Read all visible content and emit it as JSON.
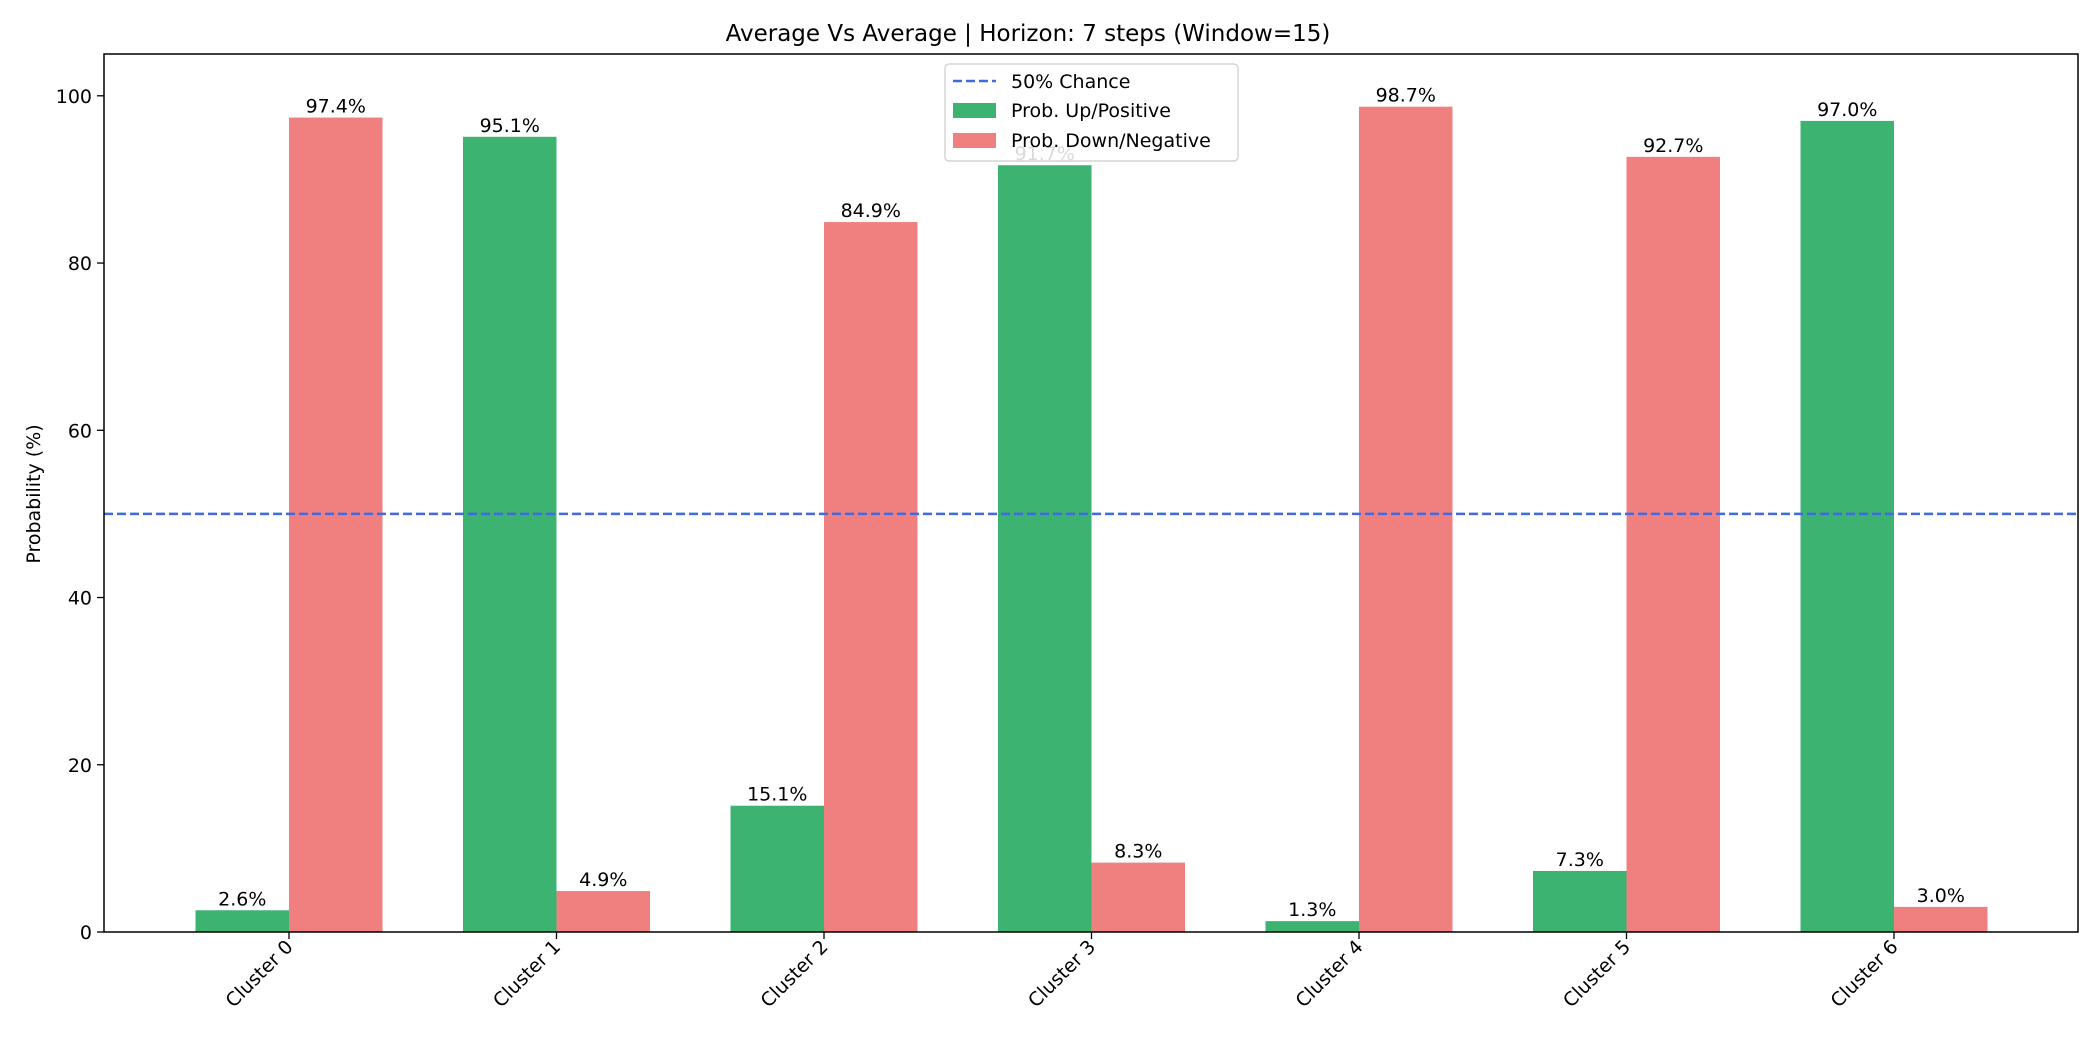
{
  "chart_data": {
    "type": "bar",
    "title": "Average Vs Average | Horizon: 7 steps (Window=15)",
    "xlabel": "",
    "ylabel": "Probability (%)",
    "categories": [
      "Cluster 0",
      "Cluster 1",
      "Cluster 2",
      "Cluster 3",
      "Cluster 4",
      "Cluster 5",
      "Cluster 6"
    ],
    "series": [
      {
        "name": "Prob. Up/Positive",
        "color": "#3cb371",
        "values": [
          2.6,
          95.1,
          15.1,
          91.7,
          1.3,
          7.3,
          97.0
        ],
        "labels": [
          "2.6%",
          "95.1%",
          "15.1%",
          "91.7%",
          "1.3%",
          "7.3%",
          "97.0%"
        ]
      },
      {
        "name": "Prob. Down/Negative",
        "color": "#f08080",
        "values": [
          97.4,
          4.9,
          84.9,
          8.3,
          98.7,
          92.7,
          3.0
        ],
        "labels": [
          "97.4%",
          "4.9%",
          "84.9%",
          "8.3%",
          "98.7%",
          "92.7%",
          "3.0%"
        ]
      }
    ],
    "reference_line": {
      "name": "50% Chance",
      "value": 50,
      "color": "#4169e1",
      "style": "dashed"
    },
    "ylim": [
      0,
      105
    ],
    "yticks": [
      0,
      20,
      40,
      60,
      80,
      100
    ],
    "grid": false,
    "legend_position": "upper-center"
  }
}
